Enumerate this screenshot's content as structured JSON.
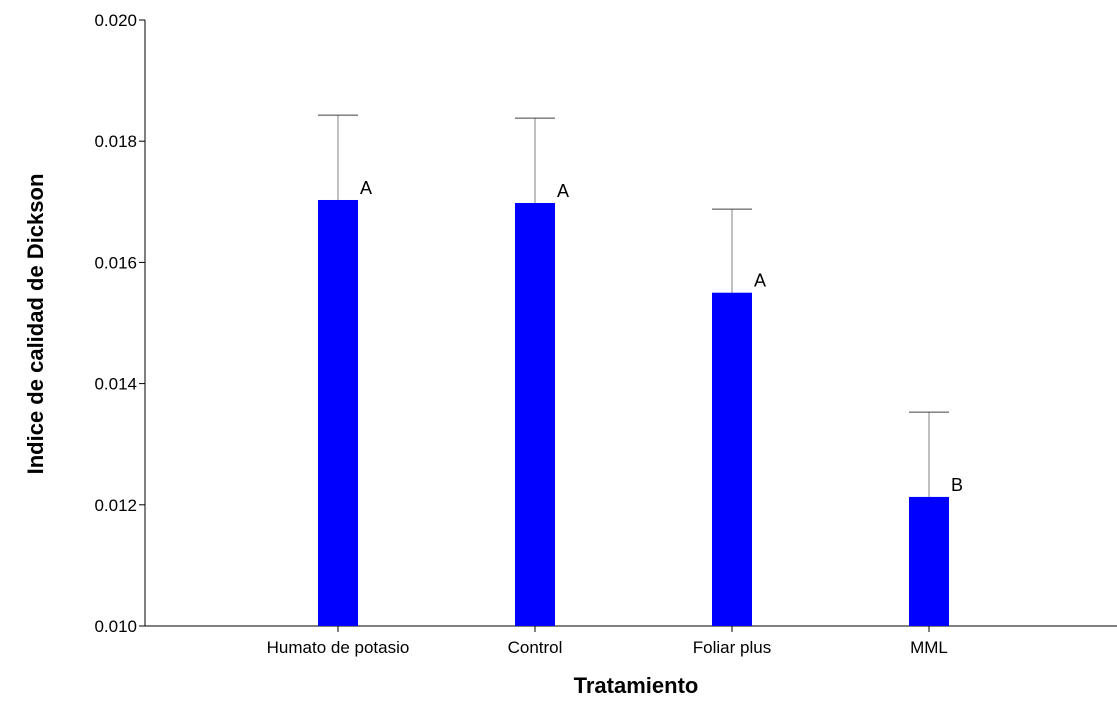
{
  "chart_data": {
    "type": "bar",
    "title": "",
    "xlabel": "Tratamiento",
    "ylabel": "Indice de calidad de Dickson",
    "categories": [
      "Humato de potasio",
      "Control",
      "Foliar plus",
      "MML"
    ],
    "values": [
      0.01703,
      0.01698,
      0.0155,
      0.01213
    ],
    "error_upper": [
      0.01843,
      0.01838,
      0.01688,
      0.01353
    ],
    "significance_letters": [
      "A",
      "A",
      "A",
      "B"
    ],
    "ylim": [
      0.01,
      0.02
    ],
    "yticks": [
      "0.010",
      "0.012",
      "0.014",
      "0.016",
      "0.018",
      "0.020"
    ],
    "grid": false,
    "legend": "none",
    "bar_color": "#0000ff",
    "error_bar_color": "#808080"
  }
}
